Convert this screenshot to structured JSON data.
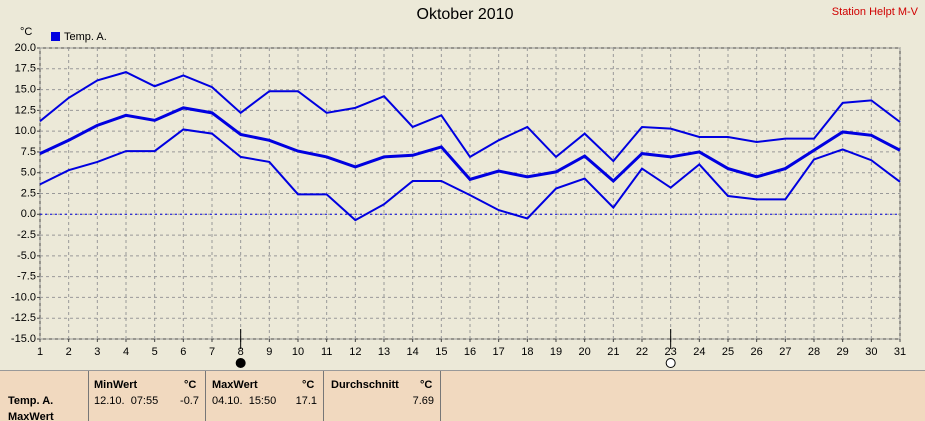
{
  "chart_data": {
    "type": "line",
    "title": "Oktober 2010",
    "station": "Station Helpt M-V",
    "y_unit": "°C",
    "x": [
      1,
      2,
      3,
      4,
      5,
      6,
      7,
      8,
      9,
      10,
      11,
      12,
      13,
      14,
      15,
      16,
      17,
      18,
      19,
      20,
      21,
      22,
      23,
      24,
      25,
      26,
      27,
      28,
      29,
      30,
      31
    ],
    "series": [
      {
        "name": "Temp. A.",
        "color": "#0000e0",
        "width": 3,
        "values": [
          7.3,
          8.9,
          10.7,
          11.9,
          11.3,
          12.8,
          12.2,
          9.6,
          8.9,
          7.6,
          6.9,
          5.7,
          6.9,
          7.1,
          8.1,
          4.2,
          5.2,
          4.5,
          5.1,
          7.0,
          4.0,
          7.3,
          6.9,
          7.5,
          5.5,
          4.5,
          5.5,
          7.7,
          9.9,
          9.5,
          7.7
        ]
      },
      {
        "color": "#0000e0",
        "width": 2,
        "values": [
          11.2,
          14.0,
          16.1,
          17.1,
          15.4,
          16.7,
          15.3,
          12.2,
          14.8,
          14.8,
          12.2,
          12.8,
          14.2,
          10.5,
          11.9,
          6.9,
          8.9,
          10.5,
          6.9,
          9.7,
          6.4,
          10.5,
          10.3,
          9.3,
          9.3,
          8.7,
          9.1,
          9.1,
          13.4,
          13.7,
          11.1
        ]
      },
      {
        "color": "#0000e0",
        "width": 2,
        "values": [
          3.6,
          5.3,
          6.3,
          7.6,
          7.6,
          10.2,
          9.7,
          6.9,
          6.3,
          2.4,
          2.4,
          -0.7,
          1.2,
          4.0,
          4.0,
          2.3,
          0.5,
          -0.5,
          3.1,
          4.3,
          0.8,
          5.5,
          3.2,
          6.0,
          2.2,
          1.8,
          1.8,
          6.6,
          7.8,
          6.5,
          3.9
        ]
      }
    ],
    "xlim": [
      1,
      31
    ],
    "xticks": [
      1,
      2,
      3,
      4,
      5,
      6,
      7,
      8,
      9,
      10,
      11,
      12,
      13,
      14,
      15,
      16,
      17,
      18,
      19,
      20,
      21,
      22,
      23,
      24,
      25,
      26,
      27,
      28,
      29,
      30,
      31
    ],
    "ylim": [
      -15,
      20
    ],
    "yticks": [
      {
        "value": -15,
        "label": "-15.0"
      },
      {
        "value": -12.5,
        "label": "-12.5"
      },
      {
        "value": -10,
        "label": "-10.0"
      },
      {
        "value": -7.5,
        "label": "-7.5"
      },
      {
        "value": -5,
        "label": "-5.0"
      },
      {
        "value": -2.5,
        "label": "-2.5"
      },
      {
        "value": 0,
        "label": "0.0"
      },
      {
        "value": 2.5,
        "label": "2.5"
      },
      {
        "value": 5,
        "label": "5.0"
      },
      {
        "value": 7.5,
        "label": "7.5"
      },
      {
        "value": 10,
        "label": "10.0"
      },
      {
        "value": 12.5,
        "label": "12.5"
      },
      {
        "value": 15,
        "label": "15.0"
      },
      {
        "value": 17.5,
        "label": "17.5"
      },
      {
        "value": 20,
        "label": "20.0"
      }
    ],
    "grid": true,
    "zero_line": true,
    "markers": [
      {
        "x": 8,
        "filled": true
      },
      {
        "x": 23,
        "filled": false
      }
    ]
  },
  "table": {
    "headers": [
      "MinWert",
      "°C",
      "MaxWert",
      "°C",
      "Durchschnitt",
      "°C"
    ],
    "rows": [
      [
        "Temp. A.",
        "12.10.  07:55",
        -0.7,
        "04.10.  15:50",
        17.1,
        7.69
      ],
      [
        "MaxWert"
      ]
    ]
  }
}
